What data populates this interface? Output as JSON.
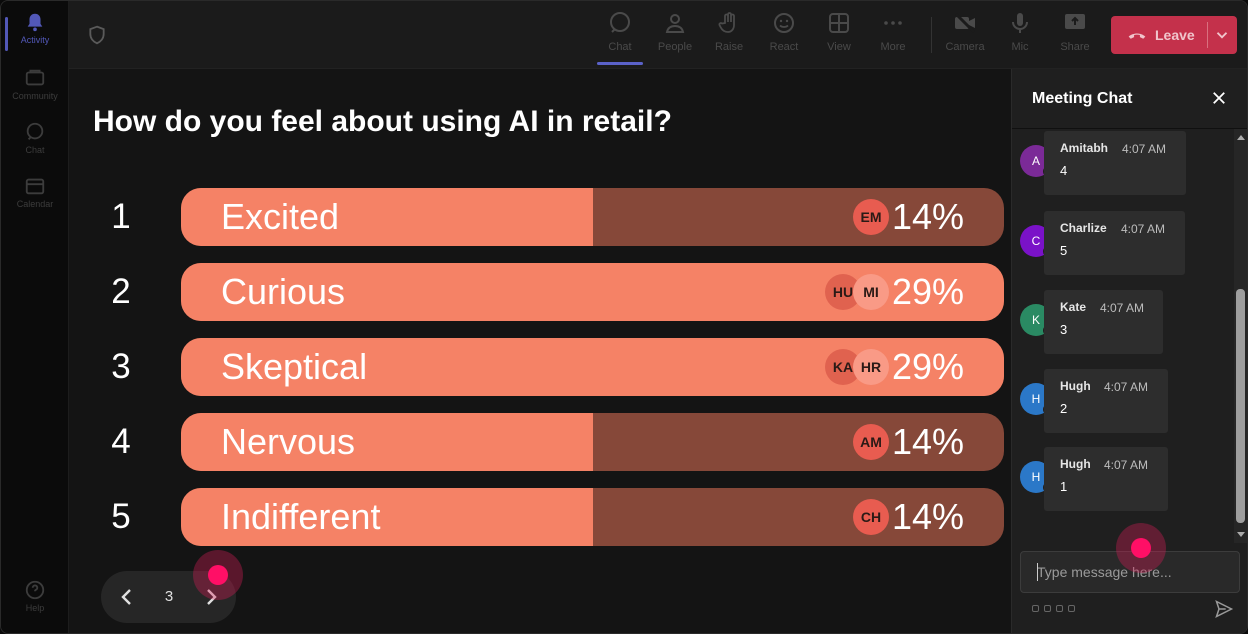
{
  "rail": {
    "items": [
      {
        "label": "Activity",
        "icon": "bell-icon",
        "active": true
      },
      {
        "label": "Community",
        "icon": "community-icon"
      },
      {
        "label": "Chat",
        "icon": "chat-icon"
      },
      {
        "label": "Calendar",
        "icon": "calendar-icon"
      }
    ],
    "help": {
      "label": "Help",
      "icon": "help-icon"
    }
  },
  "topbar": {
    "buttons": [
      {
        "label": "Chat",
        "icon": "chat-bubble-icon",
        "active": true
      },
      {
        "label": "People",
        "icon": "people-icon"
      },
      {
        "label": "Raise",
        "icon": "raise-hand-icon"
      },
      {
        "label": "React",
        "icon": "emoji-icon"
      },
      {
        "label": "View",
        "icon": "grid-view-icon"
      },
      {
        "label": "More",
        "icon": "more-dots-icon"
      },
      {
        "label": "Camera",
        "icon": "camera-off-icon"
      },
      {
        "label": "Mic",
        "icon": "mic-icon"
      },
      {
        "label": "Share",
        "icon": "share-screen-icon"
      }
    ],
    "leave_label": "Leave"
  },
  "poll": {
    "question": "How do you feel about using AI in retail?",
    "options": [
      {
        "num": "1",
        "label": "Excited",
        "percent": "14%",
        "fill": 0.5,
        "voters": [
          {
            "initials": "EM",
            "color": "#e85c50"
          }
        ]
      },
      {
        "num": "2",
        "label": "Curious",
        "percent": "29%",
        "fill": 1.0,
        "voters": [
          {
            "initials": "HU",
            "color": "#e0624f"
          },
          {
            "initials": "MI",
            "color": "#f99a86"
          }
        ]
      },
      {
        "num": "3",
        "label": "Skeptical",
        "percent": "29%",
        "fill": 1.0,
        "voters": [
          {
            "initials": "KA",
            "color": "#e0624f"
          },
          {
            "initials": "HR",
            "color": "#f99a86"
          }
        ]
      },
      {
        "num": "4",
        "label": "Nervous",
        "percent": "14%",
        "fill": 0.5,
        "voters": [
          {
            "initials": "AM",
            "color": "#e85c50"
          }
        ]
      },
      {
        "num": "5",
        "label": "Indifferent",
        "percent": "14%",
        "fill": 0.5,
        "voters": [
          {
            "initials": "CH",
            "color": "#e85c50"
          }
        ]
      }
    ]
  },
  "pager": {
    "page": "3"
  },
  "chat": {
    "title": "Meeting Chat",
    "messages": [
      {
        "sender": "Amitabh",
        "time": "4:07 AM",
        "body": "4",
        "initial": "A",
        "color": "#7b2a97"
      },
      {
        "sender": "Charlize",
        "time": "4:07 AM",
        "body": "5",
        "initial": "C",
        "color": "#7a12c8"
      },
      {
        "sender": "Kate",
        "time": "4:07 AM",
        "body": "3",
        "initial": "K",
        "color": "#2a8a63"
      },
      {
        "sender": "Hugh",
        "time": "4:07 AM",
        "body": "2",
        "initial": "H",
        "color": "#2b78c8"
      },
      {
        "sender": "Hugh",
        "time": "4:07 AM",
        "body": "1",
        "initial": "H",
        "color": "#2b78c8"
      }
    ],
    "input_placeholder": "Type message here..."
  }
}
